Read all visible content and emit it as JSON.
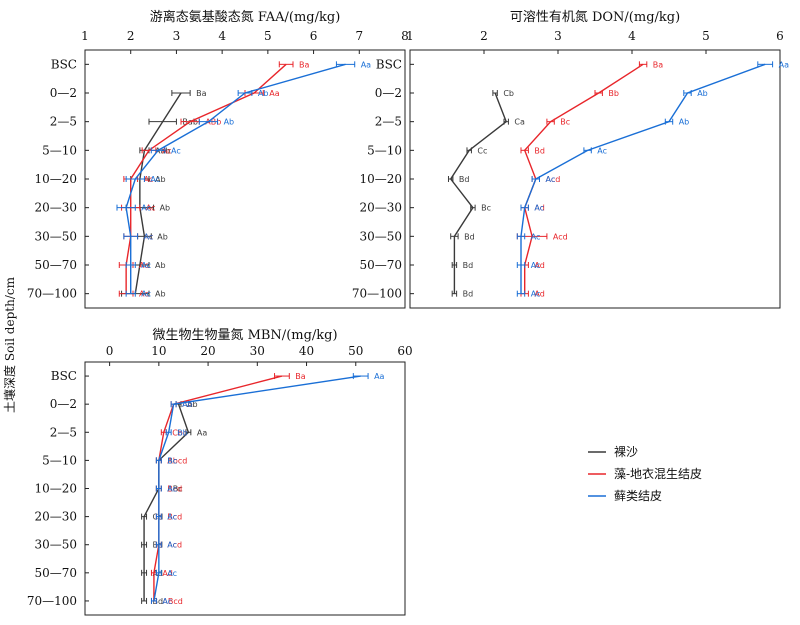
{
  "y_label": "土壤深度 Soil depth/cm",
  "depth_categories": [
    "BSC",
    "0—2",
    "2—5",
    "5—10",
    "10—20",
    "20—30",
    "30—50",
    "50—70",
    "70—100"
  ],
  "colors": {
    "bare": "#3a3a3a",
    "algae": "#e8262b",
    "moss": "#1a6fd6"
  },
  "legend": [
    "裸沙",
    "藻-地衣混生结皮",
    "藓类结皮"
  ],
  "chart_data": [
    {
      "type": "line",
      "title": "游离态氨基酸态氮 FAA/(mg/kg)",
      "xlim": [
        1,
        8
      ],
      "xticks": [
        "1",
        "2",
        "3",
        "4",
        "5",
        "6",
        "7",
        "8"
      ],
      "series": [
        {
          "name": "裸沙",
          "values": [
            null,
            3.1,
            2.7,
            2.3,
            2.2,
            2.2,
            2.3,
            2.2,
            2.1
          ],
          "errors": [
            null,
            0.2,
            0.3,
            0.1,
            0.2,
            0.3,
            0.15,
            0.2,
            0.3
          ],
          "labels": [
            "",
            "Ba",
            "Bab",
            "Aab",
            "Ab",
            "Ab",
            "Ab",
            "Ab",
            "Ab"
          ]
        },
        {
          "name": "藻-地衣混生结皮",
          "values": [
            5.4,
            4.7,
            3.3,
            2.4,
            2.0,
            2.0,
            2.0,
            1.9,
            1.9
          ],
          "errors": [
            0.15,
            0.2,
            0.2,
            0.15,
            0.15,
            0.2,
            0.15,
            0.15,
            0.15
          ],
          "labels": [
            "Ba",
            "Aa",
            "ABb",
            "Ac",
            "Ac",
            "Ac",
            "Ac",
            "Ac",
            "Ac"
          ]
        },
        {
          "name": "藓类结皮",
          "values": [
            6.7,
            4.5,
            3.7,
            2.6,
            2.1,
            1.9,
            2.0,
            2.0,
            2.0
          ],
          "errors": [
            0.2,
            0.15,
            0.2,
            0.15,
            0.2,
            0.2,
            0.15,
            0.1,
            0.1
          ],
          "labels": [
            "Aa",
            "Ab",
            "Ab",
            "Ac",
            "Ac",
            "Ac",
            "Ac",
            "Ac",
            "Ac"
          ]
        }
      ]
    },
    {
      "type": "line",
      "title": "可溶性有机氮 DON/(mg/kg)",
      "xlim": [
        1,
        6
      ],
      "xticks": [
        "1",
        "2",
        "3",
        "4",
        "5",
        "6"
      ],
      "series": [
        {
          "name": "裸沙",
          "values": [
            null,
            2.15,
            2.3,
            1.8,
            1.55,
            1.85,
            1.6,
            1.6,
            1.6
          ],
          "errors": [
            null,
            0.03,
            0.03,
            0.03,
            0.03,
            0.03,
            0.05,
            0.03,
            0.03
          ],
          "labels": [
            "",
            "Cb",
            "Ca",
            "Cc",
            "Bd",
            "Bc",
            "Bd",
            "Bd",
            "Bd"
          ]
        },
        {
          "name": "藻-地衣混生结皮",
          "values": [
            4.15,
            3.55,
            2.9,
            2.55,
            2.7,
            2.55,
            2.65,
            2.55,
            2.55
          ],
          "errors": [
            0.05,
            0.05,
            0.05,
            0.05,
            0.05,
            0.05,
            0.2,
            0.05,
            0.05
          ],
          "labels": [
            "Ba",
            "Bb",
            "Bc",
            "Bd",
            "Acd",
            "Ad",
            "Acd",
            "Ad",
            "Ad"
          ]
        },
        {
          "name": "藓类结皮",
          "values": [
            5.8,
            4.75,
            4.5,
            3.4,
            2.7,
            2.55,
            2.5,
            2.5,
            2.5
          ],
          "errors": [
            0.1,
            0.05,
            0.05,
            0.05,
            0.05,
            0.05,
            0.05,
            0.05,
            0.05
          ],
          "labels": [
            "Aa",
            "Ab",
            "Ab",
            "Ac",
            "Ac",
            "Ac",
            "Ac",
            "Ac",
            "Ac"
          ]
        }
      ]
    },
    {
      "type": "line",
      "title": "微生物生物量氮 MBN/(mg/kg)",
      "xlim": [
        -5,
        60
      ],
      "xticks": [
        "0",
        "10",
        "20",
        "30",
        "40",
        "50",
        "60"
      ],
      "tick_values": [
        0,
        10,
        20,
        30,
        40,
        50,
        60
      ],
      "series": [
        {
          "name": "裸沙",
          "values": [
            null,
            14,
            16,
            10,
            10,
            7,
            7,
            7,
            7
          ],
          "errors": [
            null,
            0.5,
            0.5,
            0.5,
            0.5,
            0.5,
            0.5,
            0.5,
            0.5
          ],
          "labels": [
            "",
            "Ab",
            "Aa",
            "Bc",
            "ABc",
            "Cd",
            "Bd",
            "Ad",
            "Bd"
          ]
        },
        {
          "name": "藻-地衣混生结皮",
          "values": [
            35,
            13,
            11,
            10,
            10,
            10,
            10,
            9,
            9
          ],
          "errors": [
            1.5,
            0.5,
            0.5,
            0.5,
            0.5,
            0.5,
            0.5,
            0.5,
            0.5
          ],
          "labels": [
            "Ba",
            "Ab",
            "Cbc",
            "Abcd",
            "Bcd",
            "Bcd",
            "Acd",
            "Ad",
            "ABcd"
          ]
        },
        {
          "name": "藓类结皮",
          "values": [
            51,
            13,
            12,
            10,
            10,
            10,
            10,
            10,
            9
          ],
          "errors": [
            1.5,
            0.5,
            0.5,
            0.5,
            0.5,
            0.5,
            0.5,
            0.5,
            0.5
          ],
          "labels": [
            "Aa",
            "Ab",
            "Bb",
            "Bc",
            "Ac",
            "Ac",
            "Ac",
            "Ac",
            "Ac"
          ]
        }
      ]
    }
  ]
}
